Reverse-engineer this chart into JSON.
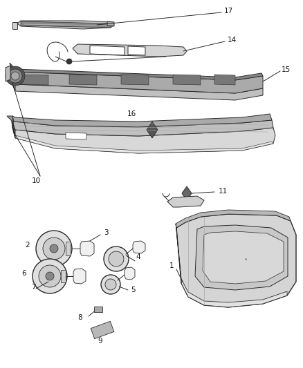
{
  "bg_color": "#ffffff",
  "fig_width": 4.38,
  "fig_height": 5.33,
  "dpi": 100,
  "line_color": "#2a2a2a",
  "text_color": "#111111",
  "gray_light": "#e8e8e8",
  "gray_mid": "#cccccc",
  "gray_dark": "#999999"
}
